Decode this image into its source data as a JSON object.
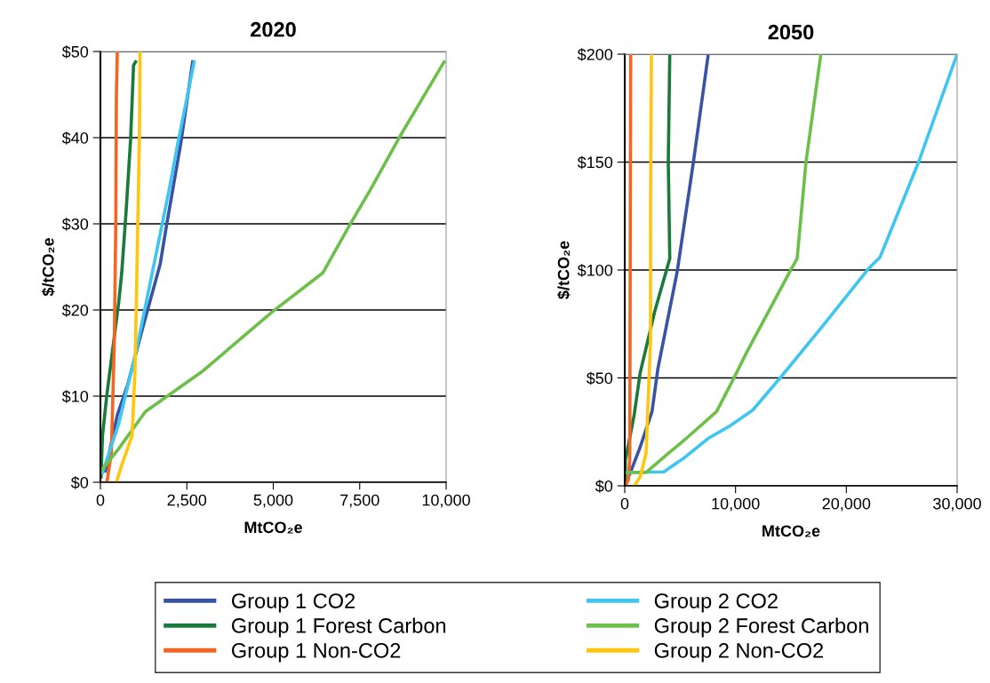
{
  "chart_data": [
    {
      "type": "line",
      "title": "2020",
      "xlabel": "MtCO₂e",
      "ylabel": "$/tCO₂e",
      "xlim": [
        0,
        10000
      ],
      "ylim": [
        0,
        50
      ],
      "xticks": [
        0,
        {
          "value": 2500,
          "label": "2,500"
        },
        {
          "value": 5000,
          "label": "5,000"
        },
        {
          "value": 7500,
          "label": "7,500"
        },
        {
          "value": 10000,
          "label": "10,000"
        }
      ],
      "yticks": [
        {
          "value": 0,
          "label": "$0"
        },
        {
          "value": 10,
          "label": "$10"
        },
        {
          "value": 20,
          "label": "$20"
        },
        {
          "value": 30,
          "label": "$30"
        },
        {
          "value": 40,
          "label": "$40"
        },
        {
          "value": 50,
          "label": "$50"
        }
      ],
      "grid": "y",
      "legend": "bottom",
      "marker": "none",
      "line_style": "solid",
      "series": [
        {
          "name": "Group 1 CO2",
          "color": "#3953a4",
          "x": [
            145,
            488,
            787,
            1215,
            1728,
            1899,
            2327,
            2669
          ],
          "values": [
            1.3,
            7.8,
            11.3,
            17.8,
            25.3,
            29.5,
            39.4,
            48.8
          ]
        },
        {
          "name": "Group 1 Forest Carbon",
          "color": "#1a7a3a",
          "x": [
            17,
            60,
            188,
            530,
            616,
            744,
            873,
            958,
            1018
          ],
          "values": [
            0.6,
            5.4,
            10.2,
            20.9,
            24.3,
            31.5,
            39.8,
            48.4,
            48.8
          ]
        },
        {
          "name": "Group 1 Non-CO2",
          "color": "#f26522",
          "x": [
            188,
            317,
            402,
            445,
            462,
            488
          ],
          "values": [
            0,
            3.4,
            16.4,
            30.2,
            44.9,
            50
          ]
        },
        {
          "name": "Group 2 CO2",
          "color": "#3fc6f0",
          "x": [
            60,
            530,
            1044,
            1728,
            1985,
            2241,
            2712
          ],
          "values": [
            1.1,
            6.8,
            15.4,
            28.8,
            33.9,
            39.4,
            48.8
          ]
        },
        {
          "name": "Group 2 Forest Carbon",
          "color": "#6cc04a",
          "x": [
            17,
            530,
            1300,
            2926,
            4979,
            6433,
            7203,
            7802,
            8657,
            9941
          ],
          "values": [
            1.3,
            3.9,
            8.2,
            12.8,
            19.8,
            24.3,
            29.8,
            33.9,
            40.1,
            48.8
          ]
        },
        {
          "name": "Group 2 Non-CO2",
          "color": "#ffc60b",
          "x": [
            462,
            616,
            915,
            1001,
            1069,
            1129,
            1146
          ],
          "values": [
            0,
            2.0,
            5.4,
            13.0,
            27.4,
            40.5,
            50
          ]
        }
      ]
    },
    {
      "type": "line",
      "title": "2050",
      "xlabel": "MtCO₂e",
      "ylabel": "$/tCO₂e",
      "xlim": [
        0,
        30000
      ],
      "ylim": [
        0,
        200
      ],
      "xticks": [
        0,
        {
          "value": 10000,
          "label": "10,000"
        },
        {
          "value": 20000,
          "label": "20,000"
        },
        {
          "value": 30000,
          "label": "30,000"
        }
      ],
      "yticks": [
        {
          "value": 0,
          "label": "$0"
        },
        {
          "value": 50,
          "label": "$50"
        },
        {
          "value": 100,
          "label": "$100"
        },
        {
          "value": 150,
          "label": "$150"
        },
        {
          "value": 200,
          "label": "$200"
        }
      ],
      "grid": "y",
      "marker": "none",
      "line_style": "solid",
      "series": [
        {
          "color": "#3953a4",
          "x": [
            455,
            1390,
            2460,
            2995,
            4730,
            6200,
            7540
          ],
          "values": [
            5.5,
            17.9,
            34.4,
            54.4,
            99.1,
            150.1,
            200
          ]
        },
        {
          "color": "#1a7a3a",
          "x": [
            53,
            53,
            855,
            1390,
            2727,
            3800,
            4065,
            3930,
            4065
          ],
          "values": [
            0,
            11.7,
            33.0,
            52.3,
            81.2,
            100.5,
            105.3,
            150.1,
            200
          ]
        },
        {
          "color": "#f26522",
          "x": [
            53,
            320,
            455,
            535
          ],
          "values": [
            0,
            2.8,
            12.4,
            200
          ]
        },
        {
          "color": "#3fc6f0",
          "x": [
            53,
            3530,
            5400,
            7540,
            9410,
            11550,
            13960,
            17700,
            21980,
            23050,
            26530,
            30000
          ],
          "values": [
            6.2,
            6.5,
            13.1,
            22.0,
            27.5,
            35.1,
            49.6,
            73.0,
            100.5,
            106.0,
            150.1,
            200
          ]
        },
        {
          "color": "#6cc04a",
          "x": [
            53,
            1925,
            3800,
            5400,
            8290,
            9680,
            11020,
            15030,
            15560,
            16360,
            17700
          ],
          "values": [
            6.2,
            6.2,
            14.5,
            21.3,
            34.4,
            48.2,
            62.0,
            100.5,
            105.3,
            150.1,
            200
          ]
        },
        {
          "color": "#ffc60b",
          "x": [
            856,
            1390,
            1925,
            2326,
            2326,
            2406
          ],
          "values": [
            0,
            4.1,
            15.1,
            67.5,
            129.4,
            200
          ]
        }
      ]
    }
  ]
}
